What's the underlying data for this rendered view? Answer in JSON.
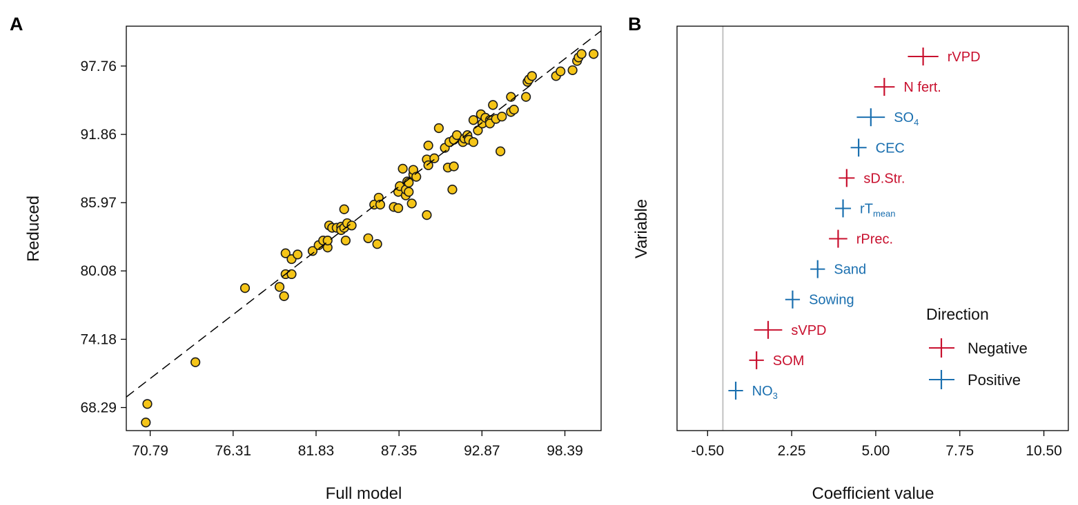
{
  "colors": {
    "point_fill": "#F5C518",
    "point_stroke": "#1a1a1a",
    "negative": "#C8102E",
    "positive": "#1A6FAF",
    "zero_line": "#bbbbbb"
  },
  "chart_data": [
    {
      "id": "A",
      "type": "scatter",
      "panel_label": "A",
      "xlabel": "Full model",
      "ylabel": "Reduced",
      "xlim": [
        69.2,
        100.8
      ],
      "ylim": [
        66.3,
        101.2
      ],
      "x_ticks": [
        70.79,
        76.31,
        81.83,
        87.35,
        92.87,
        98.39
      ],
      "x_tick_labels": [
        "70.79",
        "76.31",
        "81.83",
        "87.35",
        "92.87",
        "98.39"
      ],
      "y_ticks": [
        68.29,
        74.18,
        80.08,
        85.97,
        91.86,
        97.76
      ],
      "y_tick_labels": [
        "68.29",
        "74.18",
        "80.08",
        "85.97",
        "91.86",
        "97.76"
      ],
      "reference_line": {
        "style": "dashed",
        "slope": 1,
        "intercept": 0
      },
      "points": [
        [
          70.5,
          67.0
        ],
        [
          70.6,
          68.6
        ],
        [
          73.8,
          72.2
        ],
        [
          77.1,
          78.6
        ],
        [
          79.4,
          78.7
        ],
        [
          79.7,
          77.9
        ],
        [
          79.8,
          79.8
        ],
        [
          80.2,
          79.8
        ],
        [
          79.8,
          81.6
        ],
        [
          80.2,
          81.1
        ],
        [
          80.6,
          81.5
        ],
        [
          81.6,
          81.8
        ],
        [
          82.0,
          82.3
        ],
        [
          82.3,
          82.7
        ],
        [
          82.6,
          82.1
        ],
        [
          82.6,
          82.7
        ],
        [
          82.7,
          84.0
        ],
        [
          82.9,
          83.8
        ],
        [
          83.2,
          83.8
        ],
        [
          83.5,
          83.9
        ],
        [
          83.5,
          83.6
        ],
        [
          83.7,
          83.8
        ],
        [
          83.9,
          84.2
        ],
        [
          83.7,
          85.4
        ],
        [
          83.8,
          82.7
        ],
        [
          84.2,
          84.0
        ],
        [
          85.3,
          82.9
        ],
        [
          85.7,
          85.8
        ],
        [
          85.9,
          82.4
        ],
        [
          86.0,
          86.4
        ],
        [
          86.1,
          85.8
        ],
        [
          87.0,
          85.6
        ],
        [
          87.3,
          85.5
        ],
        [
          87.3,
          86.9
        ],
        [
          87.4,
          87.4
        ],
        [
          87.6,
          88.9
        ],
        [
          87.8,
          86.6
        ],
        [
          87.8,
          87.1
        ],
        [
          87.9,
          87.8
        ],
        [
          88.0,
          86.9
        ],
        [
          88.0,
          87.7
        ],
        [
          88.2,
          85.9
        ],
        [
          88.3,
          88.4
        ],
        [
          88.3,
          88.8
        ],
        [
          88.5,
          88.2
        ],
        [
          89.2,
          84.9
        ],
        [
          89.2,
          89.7
        ],
        [
          89.3,
          89.2
        ],
        [
          89.3,
          90.9
        ],
        [
          89.7,
          89.8
        ],
        [
          90.0,
          92.4
        ],
        [
          90.4,
          90.7
        ],
        [
          90.6,
          89.0
        ],
        [
          90.7,
          91.2
        ],
        [
          91.0,
          89.1
        ],
        [
          91.0,
          91.4
        ],
        [
          90.9,
          87.1
        ],
        [
          91.2,
          91.8
        ],
        [
          91.6,
          91.2
        ],
        [
          91.7,
          91.5
        ],
        [
          91.9,
          91.8
        ],
        [
          92.0,
          91.4
        ],
        [
          92.3,
          91.2
        ],
        [
          92.3,
          93.1
        ],
        [
          92.6,
          92.2
        ],
        [
          92.8,
          93.6
        ],
        [
          92.9,
          92.8
        ],
        [
          93.1,
          93.3
        ],
        [
          93.4,
          93.1
        ],
        [
          93.4,
          92.8
        ],
        [
          93.6,
          94.4
        ],
        [
          93.8,
          93.2
        ],
        [
          94.1,
          90.4
        ],
        [
          94.2,
          93.4
        ],
        [
          94.8,
          93.8
        ],
        [
          94.8,
          95.1
        ],
        [
          95.0,
          94.0
        ],
        [
          95.8,
          95.1
        ],
        [
          95.9,
          96.4
        ],
        [
          96.0,
          96.6
        ],
        [
          96.2,
          96.9
        ],
        [
          97.8,
          96.9
        ],
        [
          98.1,
          97.3
        ],
        [
          98.9,
          97.4
        ],
        [
          99.2,
          98.2
        ],
        [
          99.3,
          98.5
        ],
        [
          99.5,
          98.8
        ],
        [
          100.3,
          98.8
        ]
      ]
    },
    {
      "id": "B",
      "type": "errorbar",
      "panel_label": "B",
      "xlabel": "Coefficient value",
      "ylabel": "Variable",
      "xlim": [
        -1.5,
        11.3
      ],
      "x_ticks": [
        -0.5,
        2.25,
        5.0,
        7.75,
        10.5
      ],
      "x_tick_labels": [
        "-0.50",
        "2.25",
        "5.00",
        "7.75",
        "10.50"
      ],
      "zero_line": 0,
      "legend": {
        "title": "Direction",
        "entries": [
          {
            "label": "Negative",
            "key": "negative"
          },
          {
            "label": "Positive",
            "key": "positive"
          }
        ]
      },
      "variables": [
        {
          "label": "rVPD",
          "base": "rVPD",
          "sub": "",
          "value": 6.55,
          "lo": 6.05,
          "hi": 7.05,
          "direction": "negative"
        },
        {
          "label": "N fert.",
          "base": "N fert.",
          "sub": "",
          "value": 5.28,
          "lo": 4.95,
          "hi": 5.62,
          "direction": "negative"
        },
        {
          "label": "SO4",
          "base": "SO",
          "sub": "4",
          "value": 4.84,
          "lo": 4.38,
          "hi": 5.3,
          "direction": "positive"
        },
        {
          "label": "CEC",
          "base": "CEC",
          "sub": "",
          "value": 4.44,
          "lo": 4.18,
          "hi": 4.7,
          "direction": "positive"
        },
        {
          "label": "sD.Str.",
          "base": "sD.Str.",
          "sub": "",
          "value": 4.05,
          "lo": 3.79,
          "hi": 4.31,
          "direction": "negative"
        },
        {
          "label": "rTmean",
          "base": "rT",
          "sub": "mean",
          "value": 3.93,
          "lo": 3.67,
          "hi": 4.19,
          "direction": "positive"
        },
        {
          "label": "rPrec.",
          "base": "rPrec.",
          "sub": "",
          "value": 3.77,
          "lo": 3.47,
          "hi": 4.07,
          "direction": "negative"
        },
        {
          "label": "Sand",
          "base": "Sand",
          "sub": "",
          "value": 3.1,
          "lo": 2.86,
          "hi": 3.34,
          "direction": "positive"
        },
        {
          "label": "Sowing",
          "base": "Sowing",
          "sub": "",
          "value": 2.28,
          "lo": 2.04,
          "hi": 2.52,
          "direction": "positive"
        },
        {
          "label": "sVPD",
          "base": "sVPD",
          "sub": "",
          "value": 1.48,
          "lo": 1.02,
          "hi": 1.94,
          "direction": "negative"
        },
        {
          "label": "SOM",
          "base": "SOM",
          "sub": "",
          "value": 1.1,
          "lo": 0.86,
          "hi": 1.34,
          "direction": "negative"
        },
        {
          "label": "NO3",
          "base": "NO",
          "sub": "3",
          "value": 0.42,
          "lo": 0.18,
          "hi": 0.66,
          "direction": "positive"
        }
      ]
    }
  ]
}
